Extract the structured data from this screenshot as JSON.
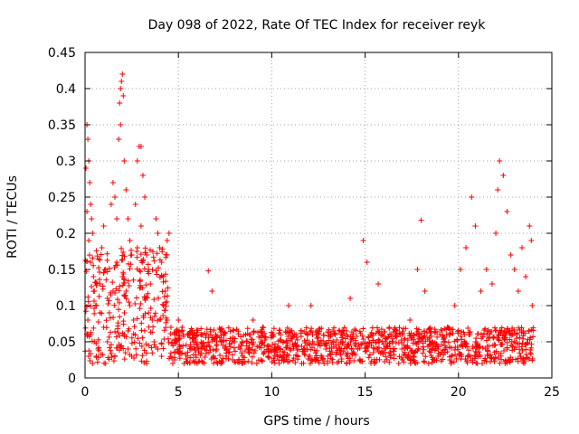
{
  "chart_data": {
    "type": "scatter",
    "title": "Day 098 of 2022, Rate Of TEC Index for receiver reyk",
    "xlabel": "GPS time / hours",
    "ylabel": "ROTI / TECUs",
    "xlim": [
      0,
      25
    ],
    "ylim": [
      0,
      0.45
    ],
    "xticks": [
      0,
      5,
      10,
      15,
      20,
      25
    ],
    "yticks": [
      0,
      0.05,
      0.1,
      0.15,
      0.2,
      0.25,
      0.3,
      0.35,
      0.4,
      0.45
    ],
    "xtick_labels": [
      "0",
      "5",
      "10",
      "15",
      "20",
      "25"
    ],
    "ytick_labels": [
      "0",
      "0.05",
      "0.1",
      "0.15",
      "0.2",
      "0.25",
      "0.3",
      "0.35",
      "0.4",
      "0.45"
    ],
    "grid": true,
    "marker": "plus",
    "color": "#ff0000",
    "series": [
      {
        "points": [
          [
            0.05,
            0.29
          ],
          [
            0.1,
            0.35
          ],
          [
            0.15,
            0.33
          ],
          [
            0.2,
            0.3
          ],
          [
            0.25,
            0.27
          ],
          [
            0.3,
            0.24
          ],
          [
            0.35,
            0.22
          ],
          [
            0.4,
            0.2
          ],
          [
            0.1,
            0.23
          ],
          [
            0.2,
            0.19
          ],
          [
            0.3,
            0.16
          ],
          [
            0.45,
            0.14
          ],
          [
            0.5,
            0.12
          ],
          [
            0.6,
            0.1
          ],
          [
            0.15,
            0.08
          ],
          [
            0.3,
            0.06
          ],
          [
            0.5,
            0.05
          ],
          [
            0.7,
            0.04
          ],
          [
            0.2,
            0.03
          ],
          [
            0.4,
            0.02
          ],
          [
            0.8,
            0.13
          ],
          [
            0.9,
            0.18
          ],
          [
            1.0,
            0.21
          ],
          [
            1.1,
            0.15
          ],
          [
            1.2,
            0.11
          ],
          [
            1.3,
            0.09
          ],
          [
            1.0,
            0.07
          ],
          [
            1.2,
            0.05
          ],
          [
            1.4,
            0.24
          ],
          [
            1.5,
            0.27
          ],
          [
            1.6,
            0.25
          ],
          [
            1.7,
            0.22
          ],
          [
            1.8,
            0.33
          ],
          [
            1.85,
            0.38
          ],
          [
            1.9,
            0.4
          ],
          [
            1.95,
            0.41
          ],
          [
            2.0,
            0.42
          ],
          [
            2.05,
            0.39
          ],
          [
            1.9,
            0.35
          ],
          [
            2.1,
            0.3
          ],
          [
            2.2,
            0.26
          ],
          [
            2.3,
            0.22
          ],
          [
            2.4,
            0.19
          ],
          [
            2.5,
            0.17
          ],
          [
            2.0,
            0.14
          ],
          [
            2.2,
            0.12
          ],
          [
            2.4,
            0.1
          ],
          [
            2.6,
            0.08
          ],
          [
            2.1,
            0.06
          ],
          [
            2.3,
            0.04
          ],
          [
            1.7,
            0.16
          ],
          [
            1.5,
            0.12
          ],
          [
            2.7,
            0.24
          ],
          [
            2.8,
            0.3
          ],
          [
            2.9,
            0.32
          ],
          [
            3.0,
            0.32
          ],
          [
            3.1,
            0.28
          ],
          [
            3.2,
            0.25
          ],
          [
            3.0,
            0.21
          ],
          [
            2.8,
            0.18
          ],
          [
            3.3,
            0.17
          ],
          [
            3.4,
            0.15
          ],
          [
            3.5,
            0.13
          ],
          [
            3.2,
            0.11
          ],
          [
            3.4,
            0.09
          ],
          [
            3.6,
            0.08
          ],
          [
            3.8,
            0.22
          ],
          [
            3.9,
            0.2
          ],
          [
            4.0,
            0.18
          ],
          [
            4.1,
            0.16
          ],
          [
            4.2,
            0.14
          ],
          [
            4.3,
            0.12
          ],
          [
            4.4,
            0.19
          ],
          [
            4.5,
            0.2
          ],
          [
            4.2,
            0.1
          ],
          [
            4.4,
            0.08
          ],
          [
            4.6,
            0.07
          ],
          [
            3.7,
            0.05
          ],
          [
            3.9,
            0.04
          ],
          [
            4.1,
            0.03
          ],
          [
            4.8,
            0.06
          ],
          [
            5.0,
            0.08
          ],
          [
            5.2,
            0.07
          ],
          [
            5.5,
            0.06
          ],
          [
            5.8,
            0.05
          ],
          [
            6.2,
            0.06
          ],
          [
            6.6,
            0.148
          ],
          [
            6.8,
            0.12
          ],
          [
            7.0,
            0.06
          ],
          [
            7.3,
            0.05
          ],
          [
            7.6,
            0.04
          ],
          [
            8.0,
            0.05
          ],
          [
            8.3,
            0.04
          ],
          [
            8.6,
            0.06
          ],
          [
            9.0,
            0.08
          ],
          [
            9.4,
            0.05
          ],
          [
            9.8,
            0.03
          ],
          [
            10.2,
            0.04
          ],
          [
            10.6,
            0.05
          ],
          [
            10.9,
            0.1
          ],
          [
            11.3,
            0.06
          ],
          [
            11.7,
            0.04
          ],
          [
            12.1,
            0.1
          ],
          [
            12.5,
            0.05
          ],
          [
            12.9,
            0.04
          ],
          [
            13.4,
            0.06
          ],
          [
            13.8,
            0.05
          ],
          [
            14.2,
            0.11
          ],
          [
            14.6,
            0.04
          ],
          [
            14.9,
            0.19
          ],
          [
            15.1,
            0.16
          ],
          [
            15.3,
            0.06
          ],
          [
            15.7,
            0.13
          ],
          [
            16.1,
            0.05
          ],
          [
            16.5,
            0.04
          ],
          [
            17.0,
            0.06
          ],
          [
            17.4,
            0.08
          ],
          [
            17.8,
            0.15
          ],
          [
            18.0,
            0.218
          ],
          [
            18.2,
            0.12
          ],
          [
            18.6,
            0.05
          ],
          [
            19.0,
            0.06
          ],
          [
            19.4,
            0.07
          ],
          [
            19.8,
            0.1
          ],
          [
            20.1,
            0.15
          ],
          [
            20.4,
            0.18
          ],
          [
            20.7,
            0.25
          ],
          [
            20.9,
            0.21
          ],
          [
            21.2,
            0.12
          ],
          [
            21.5,
            0.15
          ],
          [
            21.8,
            0.13
          ],
          [
            22.0,
            0.2
          ],
          [
            22.1,
            0.26
          ],
          [
            22.2,
            0.3
          ],
          [
            22.4,
            0.28
          ],
          [
            22.6,
            0.23
          ],
          [
            22.8,
            0.17
          ],
          [
            23.0,
            0.15
          ],
          [
            23.2,
            0.12
          ],
          [
            23.4,
            0.18
          ],
          [
            23.6,
            0.14
          ],
          [
            23.8,
            0.21
          ],
          [
            23.9,
            0.19
          ],
          [
            23.95,
            0.1
          ],
          [
            0.6,
            0.03
          ],
          [
            1.1,
            0.02
          ],
          [
            1.6,
            0.03
          ],
          [
            2.5,
            0.03
          ],
          [
            3.3,
            0.02
          ],
          [
            4.7,
            0.02
          ],
          [
            5.3,
            0.02
          ],
          [
            6.0,
            0.02
          ],
          [
            7.1,
            0.02
          ],
          [
            8.4,
            0.02
          ],
          [
            9.2,
            0.02
          ],
          [
            10.4,
            0.02
          ],
          [
            11.6,
            0.02
          ],
          [
            12.8,
            0.02
          ],
          [
            14.0,
            0.02
          ],
          [
            15.5,
            0.02
          ],
          [
            16.8,
            0.02
          ],
          [
            18.4,
            0.02
          ],
          [
            19.6,
            0.02
          ],
          [
            21.0,
            0.02
          ],
          [
            22.5,
            0.02
          ],
          [
            23.5,
            0.02
          ]
        ]
      }
    ]
  }
}
